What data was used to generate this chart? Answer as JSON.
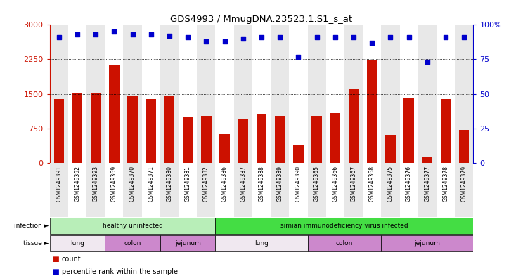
{
  "title": "GDS4993 / MmugDNA.23523.1.S1_s_at",
  "samples": [
    "GSM1249391",
    "GSM1249392",
    "GSM1249393",
    "GSM1249369",
    "GSM1249370",
    "GSM1249371",
    "GSM1249380",
    "GSM1249381",
    "GSM1249382",
    "GSM1249386",
    "GSM1249387",
    "GSM1249388",
    "GSM1249389",
    "GSM1249390",
    "GSM1249365",
    "GSM1249366",
    "GSM1249367",
    "GSM1249368",
    "GSM1249375",
    "GSM1249376",
    "GSM1249377",
    "GSM1249378",
    "GSM1249379"
  ],
  "counts": [
    1380,
    1520,
    1520,
    2130,
    1460,
    1390,
    1460,
    1000,
    1020,
    620,
    950,
    1060,
    1020,
    380,
    1020,
    1080,
    1600,
    2230,
    610,
    1410,
    130,
    1390,
    720
  ],
  "percentiles": [
    91,
    93,
    93,
    95,
    93,
    93,
    92,
    91,
    88,
    88,
    90,
    91,
    91,
    77,
    91,
    91,
    91,
    87,
    91,
    91,
    73,
    91,
    91
  ],
  "bar_color": "#cc1100",
  "dot_color": "#0000cc",
  "left_ylim": [
    0,
    3000
  ],
  "left_yticks": [
    0,
    750,
    1500,
    2250,
    3000
  ],
  "right_ylim": [
    0,
    100
  ],
  "right_yticks": [
    0,
    25,
    50,
    75,
    100
  ],
  "grid_values": [
    750,
    1500,
    2250
  ],
  "bg_color": "#ffffff",
  "col_bg_even": "#e8e8e8",
  "col_bg_odd": "#ffffff",
  "infection_groups": [
    {
      "label": "healthy uninfected",
      "start": 0,
      "end": 9,
      "color": "#b8eeb8"
    },
    {
      "label": "simian immunodeficiency virus infected",
      "start": 9,
      "end": 23,
      "color": "#44dd44"
    }
  ],
  "tissue_lung_color": "#f0e8f0",
  "tissue_other_color": "#cc88cc",
  "tissue_groups": [
    {
      "label": "lung",
      "start": 0,
      "end": 3,
      "color": "#f0e8f0"
    },
    {
      "label": "colon",
      "start": 3,
      "end": 6,
      "color": "#cc88cc"
    },
    {
      "label": "jejunum",
      "start": 6,
      "end": 9,
      "color": "#cc88cc"
    },
    {
      "label": "lung",
      "start": 9,
      "end": 14,
      "color": "#f0e8f0"
    },
    {
      "label": "colon",
      "start": 14,
      "end": 18,
      "color": "#cc88cc"
    },
    {
      "label": "jejunum",
      "start": 18,
      "end": 23,
      "color": "#cc88cc"
    }
  ]
}
